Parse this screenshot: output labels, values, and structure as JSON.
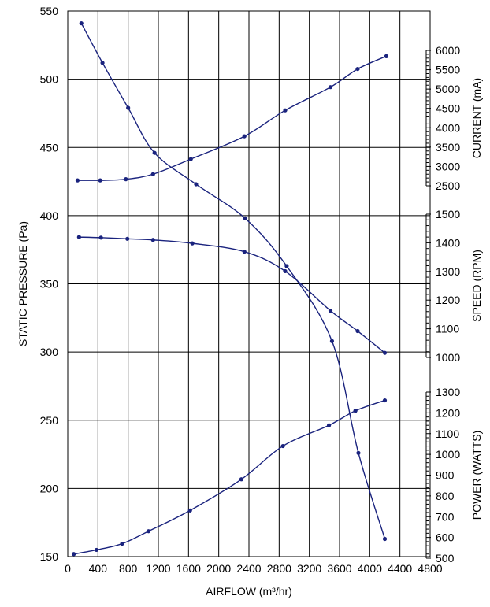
{
  "chart_data": {
    "type": "line",
    "xlabel": "AIRFLOW (m³/hr)",
    "ylabel": "STATIC PRESSURE (Pa)",
    "xlim": [
      0,
      4800
    ],
    "ylim": [
      150,
      550
    ],
    "x_ticks": [
      "0",
      "400",
      "800",
      "1200",
      "1600",
      "2000",
      "2400",
      "2800",
      "3200",
      "3600",
      "4000",
      "4400",
      "4800"
    ],
    "y_ticks": [
      "150",
      "200",
      "250",
      "300",
      "350",
      "400",
      "450",
      "500",
      "550"
    ],
    "grid": true,
    "right_axes": [
      {
        "label": "CURRENT (mA)",
        "range": [
          2500,
          6000
        ],
        "ticks": [
          "2500",
          "3000",
          "3500",
          "4000",
          "4500",
          "5000",
          "5500",
          "6000"
        ]
      },
      {
        "label": "SPEED (RPM)",
        "range": [
          1000,
          1500
        ],
        "ticks": [
          "1000",
          "1100",
          "1200",
          "1300",
          "1400",
          "1500"
        ]
      },
      {
        "label": "POWER (WATTS)",
        "range": [
          500,
          1300
        ],
        "ticks": [
          "500",
          "600",
          "700",
          "800",
          "900",
          "1000",
          "1100",
          "1200",
          "1300"
        ]
      }
    ],
    "line_color": "#1a237e",
    "series": [
      {
        "axis": "left",
        "x": [
          180,
          460,
          800,
          1150,
          1700,
          2350,
          2900,
          3500,
          3850,
          4200
        ],
        "y": [
          541,
          512,
          479,
          446,
          423,
          398,
          363,
          308,
          226,
          163
        ]
      },
      {
        "axis": "right_current",
        "x": [
          130,
          430,
          770,
          1130,
          1630,
          2340,
          2880,
          3480,
          3840,
          4220
        ],
        "y": [
          2640,
          2640,
          2670,
          2800,
          3190,
          3780,
          4450,
          5050,
          5520,
          5850
        ]
      },
      {
        "axis": "right_speed",
        "x": [
          150,
          440,
          790,
          1130,
          1650,
          2340,
          2880,
          3480,
          3840,
          4200
        ],
        "y": [
          1420,
          1418,
          1414,
          1410,
          1398,
          1369,
          1301,
          1163,
          1092,
          1016
        ]
      },
      {
        "axis": "right_power",
        "x": [
          80,
          380,
          720,
          1070,
          1620,
          2300,
          2850,
          3460,
          3810,
          4200
        ],
        "y": [
          520,
          540,
          570,
          630,
          730,
          880,
          1040,
          1140,
          1210,
          1260
        ]
      }
    ]
  }
}
